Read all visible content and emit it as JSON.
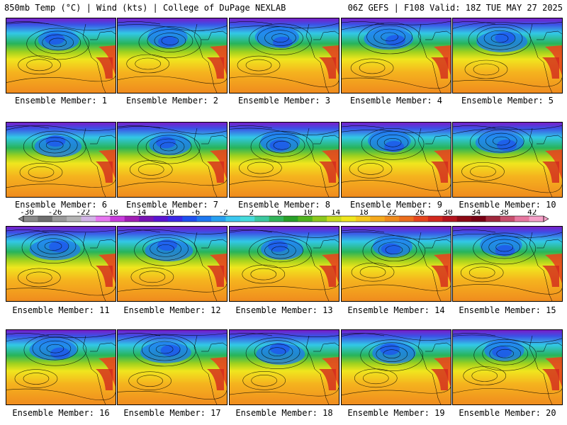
{
  "header": {
    "left": "850mb Temp (°C) | Wind (kts) | College of DuPage NEXLAB",
    "right": "06Z GEFS | F108 Valid: 18Z TUE MAY 27 2025"
  },
  "members": [
    {
      "label": "Ensemble Member: 1"
    },
    {
      "label": "Ensemble Member: 2"
    },
    {
      "label": "Ensemble Member: 3"
    },
    {
      "label": "Ensemble Member: 4"
    },
    {
      "label": "Ensemble Member: 5"
    },
    {
      "label": "Ensemble Member: 6"
    },
    {
      "label": "Ensemble Member: 7"
    },
    {
      "label": "Ensemble Member: 8"
    },
    {
      "label": "Ensemble Member: 9"
    },
    {
      "label": "Ensemble Member: 10"
    },
    {
      "label": "Ensemble Member: 11"
    },
    {
      "label": "Ensemble Member: 12"
    },
    {
      "label": "Ensemble Member: 13"
    },
    {
      "label": "Ensemble Member: 14"
    },
    {
      "label": "Ensemble Member: 15"
    },
    {
      "label": "Ensemble Member: 16"
    },
    {
      "label": "Ensemble Member: 17"
    },
    {
      "label": "Ensemble Member: 18"
    },
    {
      "label": "Ensemble Member: 19"
    },
    {
      "label": "Ensemble Member: 20"
    }
  ],
  "colorbar": {
    "ticks": [
      "-30",
      "-26",
      "-22",
      "-18",
      "-14",
      "-10",
      "-6",
      "-2",
      "2",
      "6",
      "10",
      "14",
      "18",
      "22",
      "26",
      "30",
      "34",
      "38",
      "42"
    ],
    "colors": [
      "#8a8a8a",
      "#6e6e6e",
      "#9a9a9a",
      "#b4b4b4",
      "#d2b4e6",
      "#e678f0",
      "#c83cdc",
      "#a01eb4",
      "#7814b4",
      "#5a14d2",
      "#3c28e6",
      "#1e50f0",
      "#1e78f0",
      "#28a0f0",
      "#3cc8f0",
      "#46dcdc",
      "#3cc8a0",
      "#32b45a",
      "#28a028",
      "#50b41e",
      "#8cc81e",
      "#c8dc1e",
      "#f0e61e",
      "#f5c81e",
      "#f5aa1e",
      "#f08c1e",
      "#eb6e1e",
      "#e6461e",
      "#d2281e",
      "#b4141e",
      "#8c0a14",
      "#780014",
      "#a0283c",
      "#c8506e",
      "#e678a0",
      "#f5a0c8"
    ]
  }
}
